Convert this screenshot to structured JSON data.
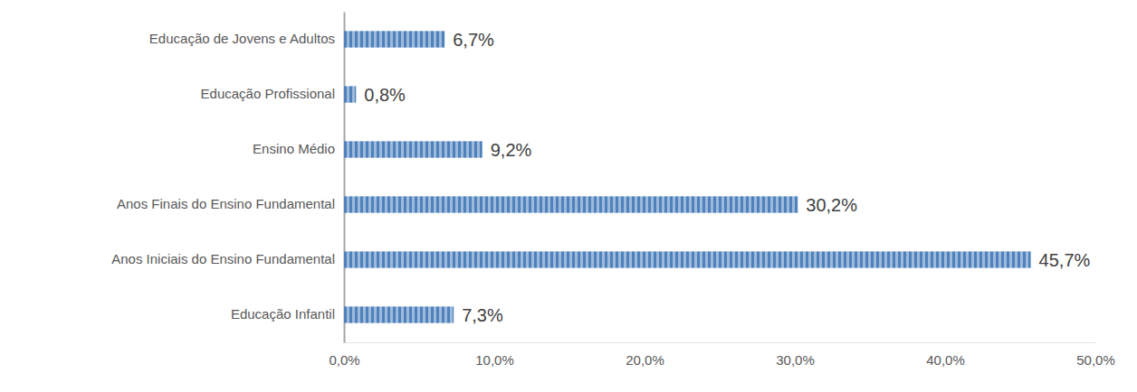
{
  "chart_data": {
    "type": "bar",
    "orientation": "horizontal",
    "categories": [
      "Educação Infantil",
      "Anos Iniciais do Ensino Fundamental",
      "Anos Finais do Ensino Fundamental",
      "Ensino Médio",
      "Educação Profissional",
      "Educação de Jovens e Adultos"
    ],
    "values": [
      7.3,
      45.7,
      30.2,
      9.2,
      0.8,
      6.7
    ],
    "value_labels": [
      "7,3%",
      "45,7%",
      "30,2%",
      "9,2%",
      "0,8%",
      "6,7%"
    ],
    "color": "#4f81bd",
    "xlim": [
      0,
      50
    ],
    "xticks": [
      {
        "value": 0,
        "label": "0,0%"
      },
      {
        "value": 10,
        "label": "10,0%"
      },
      {
        "value": 20,
        "label": "20,0%"
      },
      {
        "value": 30,
        "label": "30,0%"
      },
      {
        "value": 40,
        "label": "40,0%"
      },
      {
        "value": 50,
        "label": "50,0%"
      }
    ],
    "grid": false,
    "data_labels": true
  }
}
